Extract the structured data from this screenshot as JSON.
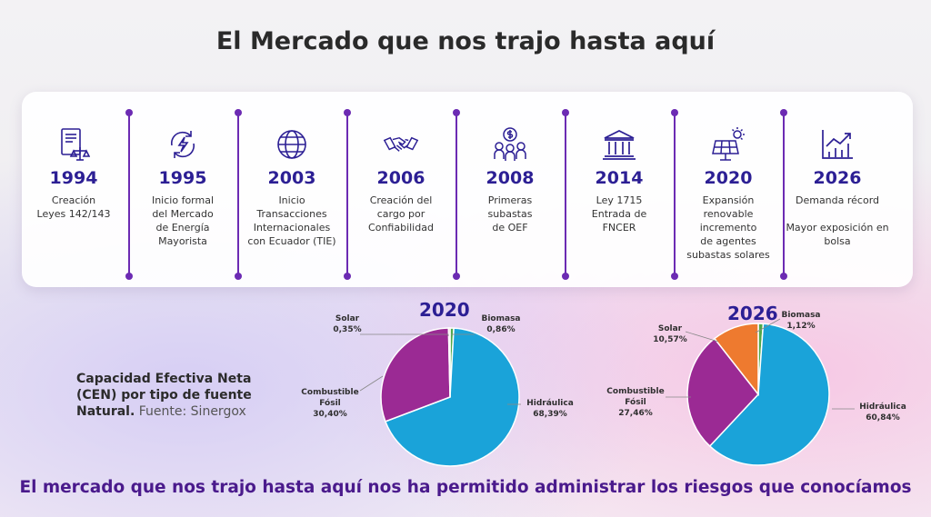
{
  "title": "El Mercado que nos trajo hasta aquí",
  "timeline": [
    {
      "year": "1994",
      "desc": "Creación\nLeyes 142/143",
      "icon": "legal-document-icon"
    },
    {
      "year": "1995",
      "desc": "Inicio formal\ndel Mercado\nde Energía\nMayorista",
      "icon": "refresh-energy-icon"
    },
    {
      "year": "2003",
      "desc": "Inicio\nTransacciones\nInternacionales\ncon Ecuador (TIE)",
      "icon": "globe-icon"
    },
    {
      "year": "2006",
      "desc": "Creación del\ncargo por\nConfiabilidad",
      "icon": "handshake-icon"
    },
    {
      "year": "2008",
      "desc": "Primeras\nsubastas\nde OEF",
      "icon": "auction-money-icon"
    },
    {
      "year": "2014",
      "desc": "Ley 1715\nEntrada de\nFNCER",
      "icon": "government-building-icon"
    },
    {
      "year": "2020",
      "desc": "Expansión\nrenovable\nincremento\nde agentes\nsubastas solares",
      "icon": "solar-panel-icon"
    },
    {
      "year": "2026",
      "desc": "Demanda récord\n\nMayor exposición en\nbolsa",
      "icon": "growth-chart-icon"
    }
  ],
  "caption": {
    "main": "Capacidad Efectiva Neta (CEN) por tipo de fuente Natural.",
    "source": "Fuente: Sinergox"
  },
  "colors": {
    "Hidráulica": "#1aa3d9",
    "Combustible Fósil": "#9b2a94",
    "Solar": "#ee7a2f",
    "Biomasa": "#4fa84a",
    "accent": "#2c1f94",
    "separator": "#6c2bb3"
  },
  "chart_data": [
    {
      "type": "pie",
      "title": "2020",
      "slices": [
        {
          "label": "Hidráulica",
          "value": 68.39,
          "label_text": "68,39%"
        },
        {
          "label": "Combustible Fósil",
          "value": 30.4,
          "label_text": "30,40%"
        },
        {
          "label": "Solar",
          "value": 0.35,
          "label_text": "0,35%"
        },
        {
          "label": "Biomasa",
          "value": 0.86,
          "label_text": "0,86%"
        }
      ]
    },
    {
      "type": "pie",
      "title": "2026",
      "slices": [
        {
          "label": "Hidráulica",
          "value": 60.84,
          "label_text": "60,84%"
        },
        {
          "label": "Combustible Fósil",
          "value": 27.46,
          "label_text": "27,46%"
        },
        {
          "label": "Solar",
          "value": 10.57,
          "label_text": "10,57%"
        },
        {
          "label": "Biomasa",
          "value": 1.12,
          "label_text": "1,12%"
        }
      ]
    }
  ],
  "footer": "El mercado que nos trajo hasta aquí nos ha permitido administrar los riesgos que conocíamos"
}
